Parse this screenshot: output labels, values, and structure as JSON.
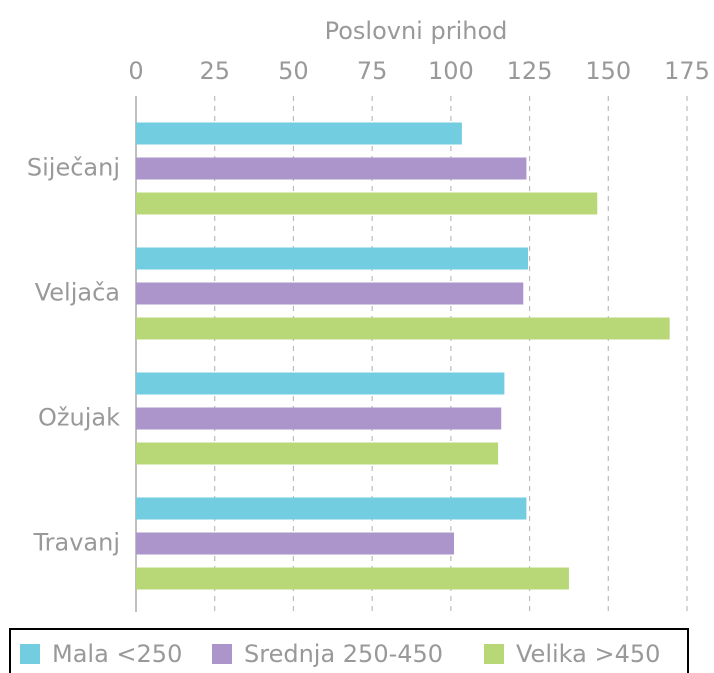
{
  "chart_data": {
    "type": "hbar",
    "xlabel": "Poslovni prihod",
    "categories": [
      "Siječanj",
      "Veljača",
      "Ožujak",
      "Travanj"
    ],
    "series": [
      {
        "name": "Mala <250",
        "color": "#72cde0",
        "values": [
          103.5,
          124.5,
          117,
          124
        ]
      },
      {
        "name": "Srednja 250-450",
        "color": "#ab95ca",
        "values": [
          124,
          123,
          116,
          101
        ]
      },
      {
        "name": "Velika >450",
        "color": "#b8d878",
        "values": [
          146.5,
          169.5,
          115,
          137.5
        ]
      }
    ],
    "xlim": [
      0,
      175
    ],
    "xticks": [
      0,
      25,
      50,
      75,
      100,
      125,
      150,
      175
    ],
    "grid": true,
    "legend": "bottom"
  }
}
